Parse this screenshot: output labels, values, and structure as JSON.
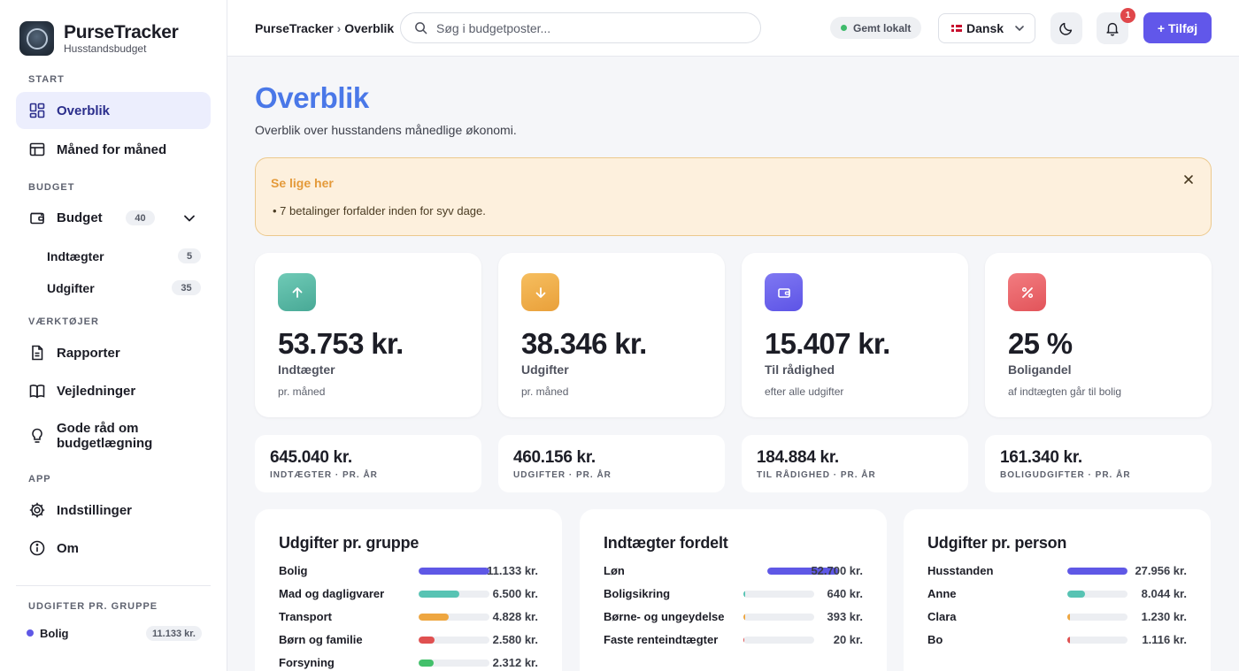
{
  "app": {
    "name": "PurseTracker",
    "subtitle": "Husstandsbudget"
  },
  "sidebar": {
    "sections": {
      "start": "START",
      "budget": "BUDGET",
      "tools": "VÆRKTØJER",
      "app": "APP",
      "groups": "UDGIFTER PR. GRUPPE"
    },
    "items": {
      "overview": {
        "label": "Overblik",
        "icon": "grid-icon",
        "active": true
      },
      "monthly": {
        "label": "Måned for måned",
        "icon": "table-icon"
      },
      "budget": {
        "label": "Budget",
        "icon": "wallet-icon",
        "count": "40",
        "expanded": true
      },
      "income": {
        "label": "Indtægter",
        "count": "5"
      },
      "expenses": {
        "label": "Udgifter",
        "count": "35"
      },
      "reports": {
        "label": "Rapporter",
        "icon": "document-icon"
      },
      "guides": {
        "label": "Vejledninger",
        "icon": "book-icon"
      },
      "tips": {
        "label": "Gode råd om budgetlægning",
        "icon": "lightbulb-icon"
      },
      "settings": {
        "label": "Indstillinger",
        "icon": "gear-icon"
      },
      "about": {
        "label": "Om",
        "icon": "info-icon"
      }
    },
    "group_summary": [
      {
        "label": "Bolig",
        "value": "11.133 kr.",
        "color": "#5f58e6"
      }
    ]
  },
  "header": {
    "breadcrumb": {
      "root": "PurseTracker",
      "separator": "›",
      "current": "Overblik"
    },
    "search_placeholder": "Søg i budgetposter...",
    "save_status": "Gemt lokalt",
    "language": "Dansk",
    "notifications": "1",
    "add_label": "+ Tilføj"
  },
  "page": {
    "title": "Overblik",
    "description": "Overblik over husstandens månedlige økonomi."
  },
  "alert": {
    "title": "Se lige her",
    "items": [
      "7 betalinger forfalder inden for syv dage."
    ]
  },
  "kpis": [
    {
      "value": "53.753 kr.",
      "label": "Indtægter",
      "sub": "pr. måned",
      "icon": "arrow-up-icon",
      "color": "#4fb5a2"
    },
    {
      "value": "38.346 kr.",
      "label": "Udgifter",
      "sub": "pr. måned",
      "icon": "arrow-down-icon",
      "color": "#eea640"
    },
    {
      "value": "15.407 kr.",
      "label": "Til rådighed",
      "sub": "efter alle udgifter",
      "icon": "wallet-icon",
      "color": "#6157ea"
    },
    {
      "value": "25 %",
      "label": "Boligandel",
      "sub": "af indtægten går til bolig",
      "icon": "percent-icon",
      "color": "#e5545a"
    }
  ],
  "yearly": [
    {
      "value": "645.040 kr.",
      "label": "INDTÆGTER · PR. ÅR"
    },
    {
      "value": "460.156 kr.",
      "label": "UDGIFTER · PR. ÅR"
    },
    {
      "value": "184.884 kr.",
      "label": "TIL RÅDIGHED · PR. ÅR"
    },
    {
      "value": "161.340 kr.",
      "label": "BOLIGUDGIFTER · PR. ÅR"
    }
  ],
  "panels": [
    {
      "title": "Udgifter pr. gruppe",
      "rows": [
        {
          "label": "Bolig",
          "value": "11.133 kr.",
          "share": 1.0,
          "color": "#5f58e6"
        },
        {
          "label": "Mad og dagligvarer",
          "value": "6.500 kr.",
          "share": 0.58,
          "color": "#57c3b3"
        },
        {
          "label": "Transport",
          "value": "4.828 kr.",
          "share": 0.43,
          "color": "#eea640"
        },
        {
          "label": "Børn og familie",
          "value": "2.580 kr.",
          "share": 0.23,
          "color": "#e05050"
        },
        {
          "label": "Forsyning",
          "value": "2.312 kr.",
          "share": 0.21,
          "color": "#43c06b"
        }
      ]
    },
    {
      "title": "Indtægter fordelt",
      "rows": [
        {
          "label": "Løn",
          "value": "52.700 kr.",
          "share": 1.0,
          "color": "#5f58e6"
        },
        {
          "label": "Boligsikring",
          "value": "640 kr.",
          "share": 0.012,
          "color": "#57c3b3"
        },
        {
          "label": "Børne- og ungeydelse",
          "value": "393 kr.",
          "share": 0.008,
          "color": "#eea640"
        },
        {
          "label": "Faste renteindtægter",
          "value": "20 kr.",
          "share": 0.0,
          "color": "#e05050"
        }
      ]
    },
    {
      "title": "Udgifter pr. person",
      "rows": [
        {
          "label": "Husstanden",
          "value": "27.956 kr.",
          "share": 1.0,
          "color": "#5f58e6"
        },
        {
          "label": "Anne",
          "value": "8.044 kr.",
          "share": 0.29,
          "color": "#57c3b3"
        },
        {
          "label": "Clara",
          "value": "1.230 kr.",
          "share": 0.044,
          "color": "#eea640"
        },
        {
          "label": "Bo",
          "value": "1.116 kr.",
          "share": 0.04,
          "color": "#e05050"
        }
      ]
    }
  ]
}
